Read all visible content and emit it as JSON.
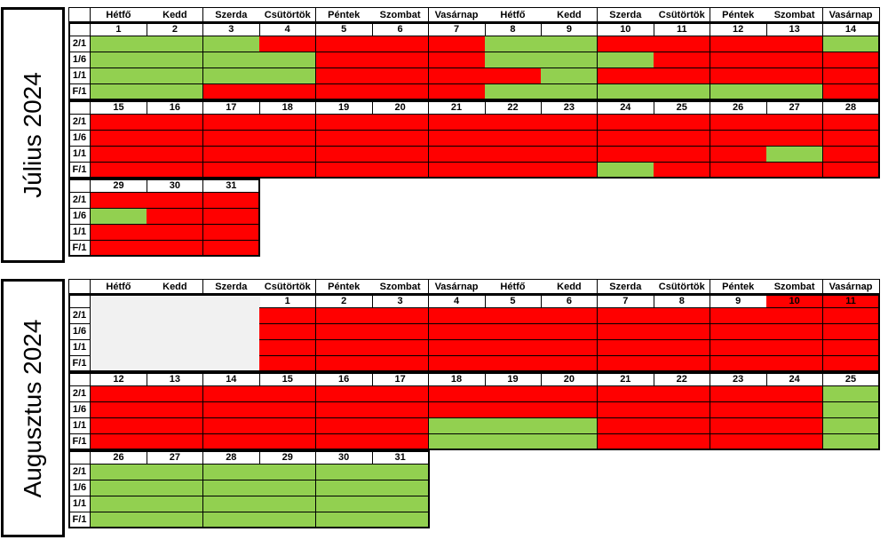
{
  "colors": {
    "available": "#92d050",
    "booked": "#ff0000"
  },
  "room_types": [
    "2/1",
    "1/6",
    "1/1",
    "F/1"
  ],
  "weekday_headers": [
    "Hétfő",
    "Kedd",
    "Szerda",
    "Csütörtök",
    "Péntek",
    "Szombat",
    "Vasárnap",
    "Hétfő",
    "Kedd",
    "Szerda",
    "Csütörtök",
    "Péntek",
    "Szombat",
    "Vasárnap"
  ],
  "months": [
    {
      "title": "Július 2024",
      "blocks": [
        {
          "days": [
            "1",
            "2",
            "3",
            "4",
            "5",
            "6",
            "7",
            "8",
            "9",
            "10",
            "11",
            "12",
            "13",
            "14"
          ],
          "rows": [
            "GGGRRRRGGRRRRG",
            "GGGGRRRGGGRRRR",
            "GGGGRRRRGRRRRR",
            "GGRRRRRGGGGGGR"
          ]
        },
        {
          "days": [
            "15",
            "16",
            "17",
            "18",
            "19",
            "20",
            "21",
            "22",
            "23",
            "24",
            "25",
            "26",
            "27",
            "28"
          ],
          "rows": [
            "RRRRRRRRRRRRRR",
            "RRRRRRRRRRRRRR",
            "RRRRRRRRRRRRGR",
            "RRRRRRRRRGRRRR"
          ]
        },
        {
          "days": [
            "29",
            "30",
            "31"
          ],
          "rows": [
            "RRR",
            "GRR",
            "RRR",
            "RRR"
          ]
        }
      ]
    },
    {
      "title": "Augusztus 2024",
      "blocks": [
        {
          "days": [
            "",
            "",
            "",
            "1",
            "2",
            "3",
            "4",
            "5",
            "6",
            "7",
            "8",
            "9",
            "10",
            "11"
          ],
          "rows": [
            "XXXRRRRRRRRRRR",
            "XXXRRRRRRRRRRR",
            "XXXRRRRRRRRRRR",
            "XXXRRRRRRRRRRR"
          ]
        },
        {
          "days": [
            "12",
            "13",
            "14",
            "15",
            "16",
            "17",
            "18",
            "19",
            "20",
            "21",
            "22",
            "23",
            "24",
            "25"
          ],
          "rows": [
            "RRRRRRRRRRRRRG",
            "RRRRRRRRRRRRRG",
            "RRRRRRGGGRRRRG",
            "RRRRRRGGGRRRRG"
          ]
        },
        {
          "days": [
            "26",
            "27",
            "28",
            "29",
            "30",
            "31"
          ],
          "rows": [
            "GGGGGG",
            "GGGGGG",
            "GGGGGG",
            "GGGGGG"
          ]
        }
      ]
    }
  ]
}
